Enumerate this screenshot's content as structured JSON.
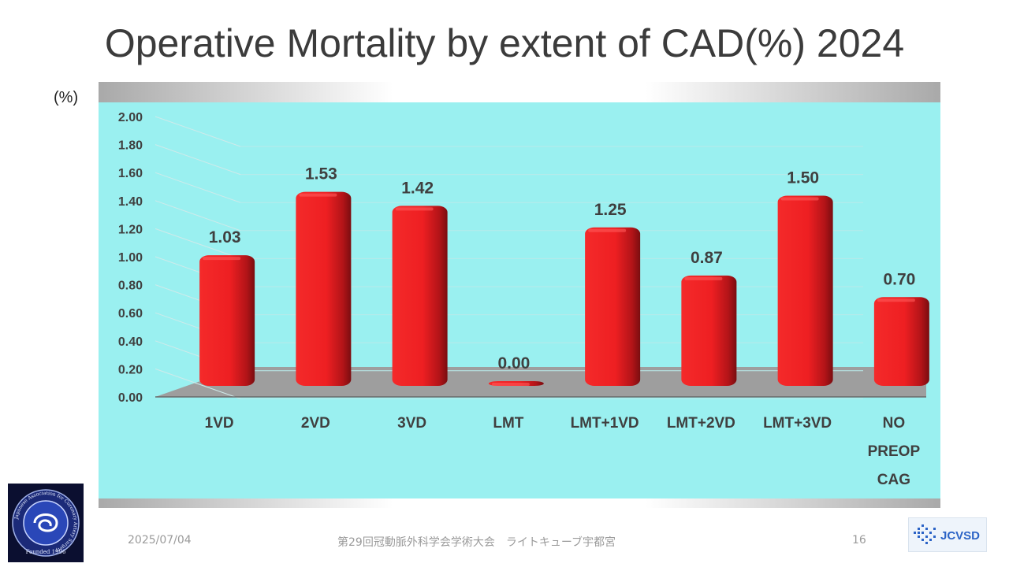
{
  "slide": {
    "title": "Operative Mortality by extent of CAD(%) 2024",
    "unit": "(%)"
  },
  "chart_data": {
    "type": "bar",
    "title": "Operative Mortality by extent of CAD(%) 2024",
    "ylabel": "(%)",
    "categories": [
      "1VD",
      "2VD",
      "3VD",
      "LMT",
      "LMT+1VD",
      "LMT+2VD",
      "LMT+3VD",
      "NO\nPREOP\nCAG"
    ],
    "values": [
      1.03,
      1.53,
      1.42,
      0.0,
      1.25,
      0.87,
      1.5,
      0.7
    ],
    "value_labels": [
      "1.03",
      "1.53",
      "1.42",
      "0.00",
      "1.25",
      "0.87",
      "1.50",
      "0.70"
    ],
    "ylim": [
      0,
      2.0
    ],
    "yticks": [
      "0.00",
      "0.20",
      "0.40",
      "0.60",
      "0.80",
      "1.00",
      "1.20",
      "1.40",
      "1.60",
      "1.80",
      "2.00"
    ],
    "grid": true,
    "bar_color": "#e8191e",
    "plot_background": "#9af0f0"
  },
  "footer": {
    "date": "2025/07/04",
    "event": "第29回冠動脈外科学会学術大会　ライトキューブ宇都宮",
    "page": "16"
  },
  "logos": {
    "left": {
      "text_ring": "Japanese Association for Coronary Artery Surgery",
      "founded": "Founded 1996"
    },
    "right": {
      "text": "JCVSD"
    }
  }
}
